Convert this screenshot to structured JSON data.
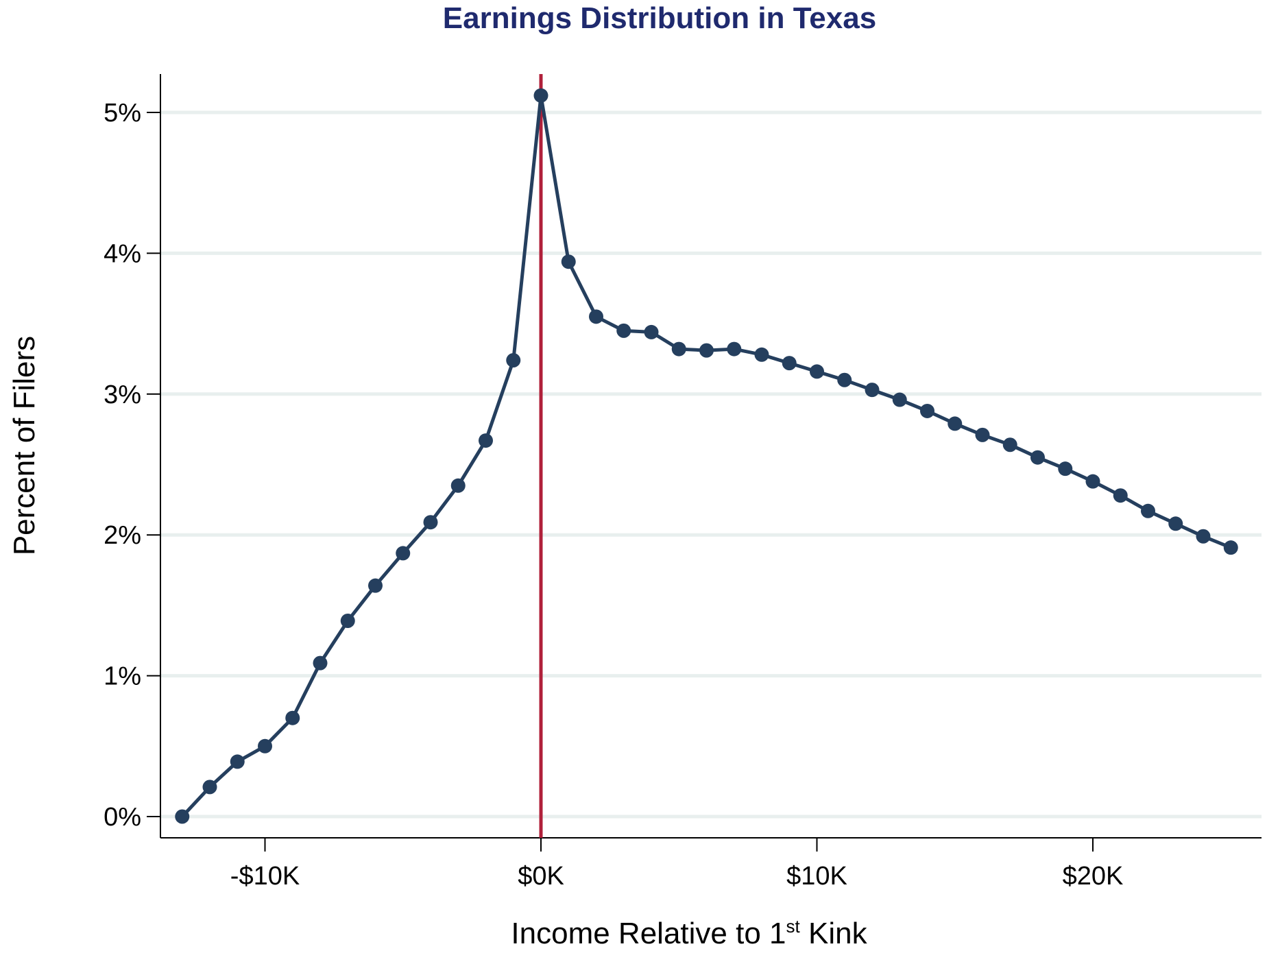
{
  "chart_data": {
    "type": "line",
    "title": "Earnings Distribution in Texas",
    "xlabel_main": "Income Relative to 1",
    "xlabel_sup": "st",
    "xlabel_end": " Kink",
    "ylabel": "Percent of Filers",
    "x_unit": "$K",
    "xlim": [
      -14,
      26
    ],
    "ylim": [
      -0.15,
      5.3
    ],
    "x_ticks": [
      {
        "value": -10,
        "label": "-$10K"
      },
      {
        "value": 0,
        "label": "$0K"
      },
      {
        "value": 10,
        "label": "$10K"
      },
      {
        "value": 20,
        "label": "$20K"
      }
    ],
    "y_ticks": [
      {
        "value": 0,
        "label": "0%"
      },
      {
        "value": 1,
        "label": "1%"
      },
      {
        "value": 2,
        "label": "2%"
      },
      {
        "value": 3,
        "label": "3%"
      },
      {
        "value": 4,
        "label": "4%"
      },
      {
        "value": 5,
        "label": "5%"
      }
    ],
    "grid": "horizontal",
    "kink_line_x": 0,
    "series": [
      {
        "x": [
          -13,
          -12,
          -11,
          -10,
          -9,
          -8,
          -7,
          -6,
          -5,
          -4,
          -3,
          -2,
          -1,
          0,
          1,
          2,
          3,
          4,
          5,
          6,
          7,
          8,
          9,
          10,
          11,
          12,
          13,
          14,
          15,
          16,
          17,
          18,
          19,
          20,
          21,
          22,
          23,
          24,
          25
        ],
        "values": [
          0.0,
          0.21,
          0.39,
          0.5,
          0.7,
          1.09,
          1.39,
          1.64,
          1.87,
          2.09,
          2.35,
          2.67,
          3.24,
          5.12,
          3.94,
          3.55,
          3.45,
          3.44,
          3.32,
          3.31,
          3.32,
          3.28,
          3.22,
          3.16,
          3.1,
          3.03,
          2.96,
          2.88,
          2.79,
          2.71,
          2.64,
          2.55,
          2.47,
          2.38,
          2.28,
          2.17,
          2.08,
          1.99,
          1.91
        ]
      }
    ],
    "colors": {
      "line": "#253f5e",
      "marker": "#253f5e",
      "kink_line": "#b0203a",
      "grid": "#e8efee",
      "title": "#1f2a6e"
    }
  }
}
